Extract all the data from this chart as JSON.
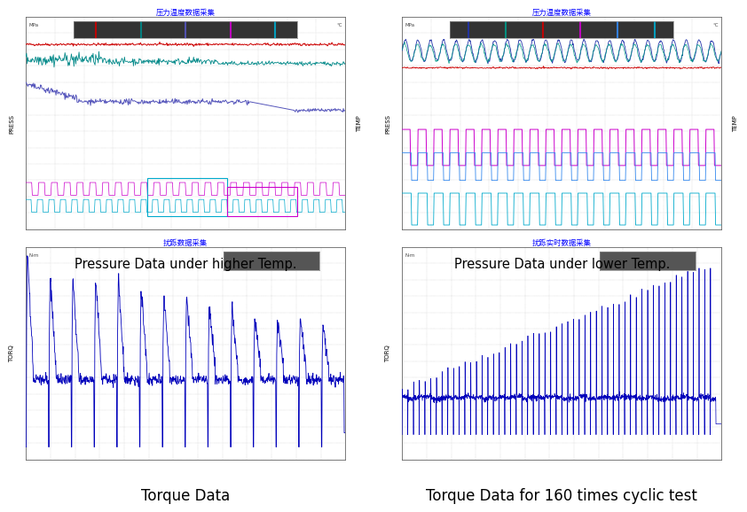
{
  "title_top_left": "压力温度数据采集",
  "title_top_right": "压力温度数据采集",
  "title_bot_left": "扰跞数据采集",
  "title_bot_right": "扰跞实时数据采集",
  "caption_top_left": "Pressure Data under higher Temp.",
  "caption_top_right": "Pressure Data under lower Temp.",
  "caption_bot_left": "Torque Data",
  "caption_bot_right": "Torque Data for 160 times cyclic test",
  "panel_bg": "#ffffff",
  "title_color": "#0000ff",
  "axis_label_press": "PRESS",
  "axis_label_temp": "TEMP",
  "axis_label_torq": "TORQ"
}
